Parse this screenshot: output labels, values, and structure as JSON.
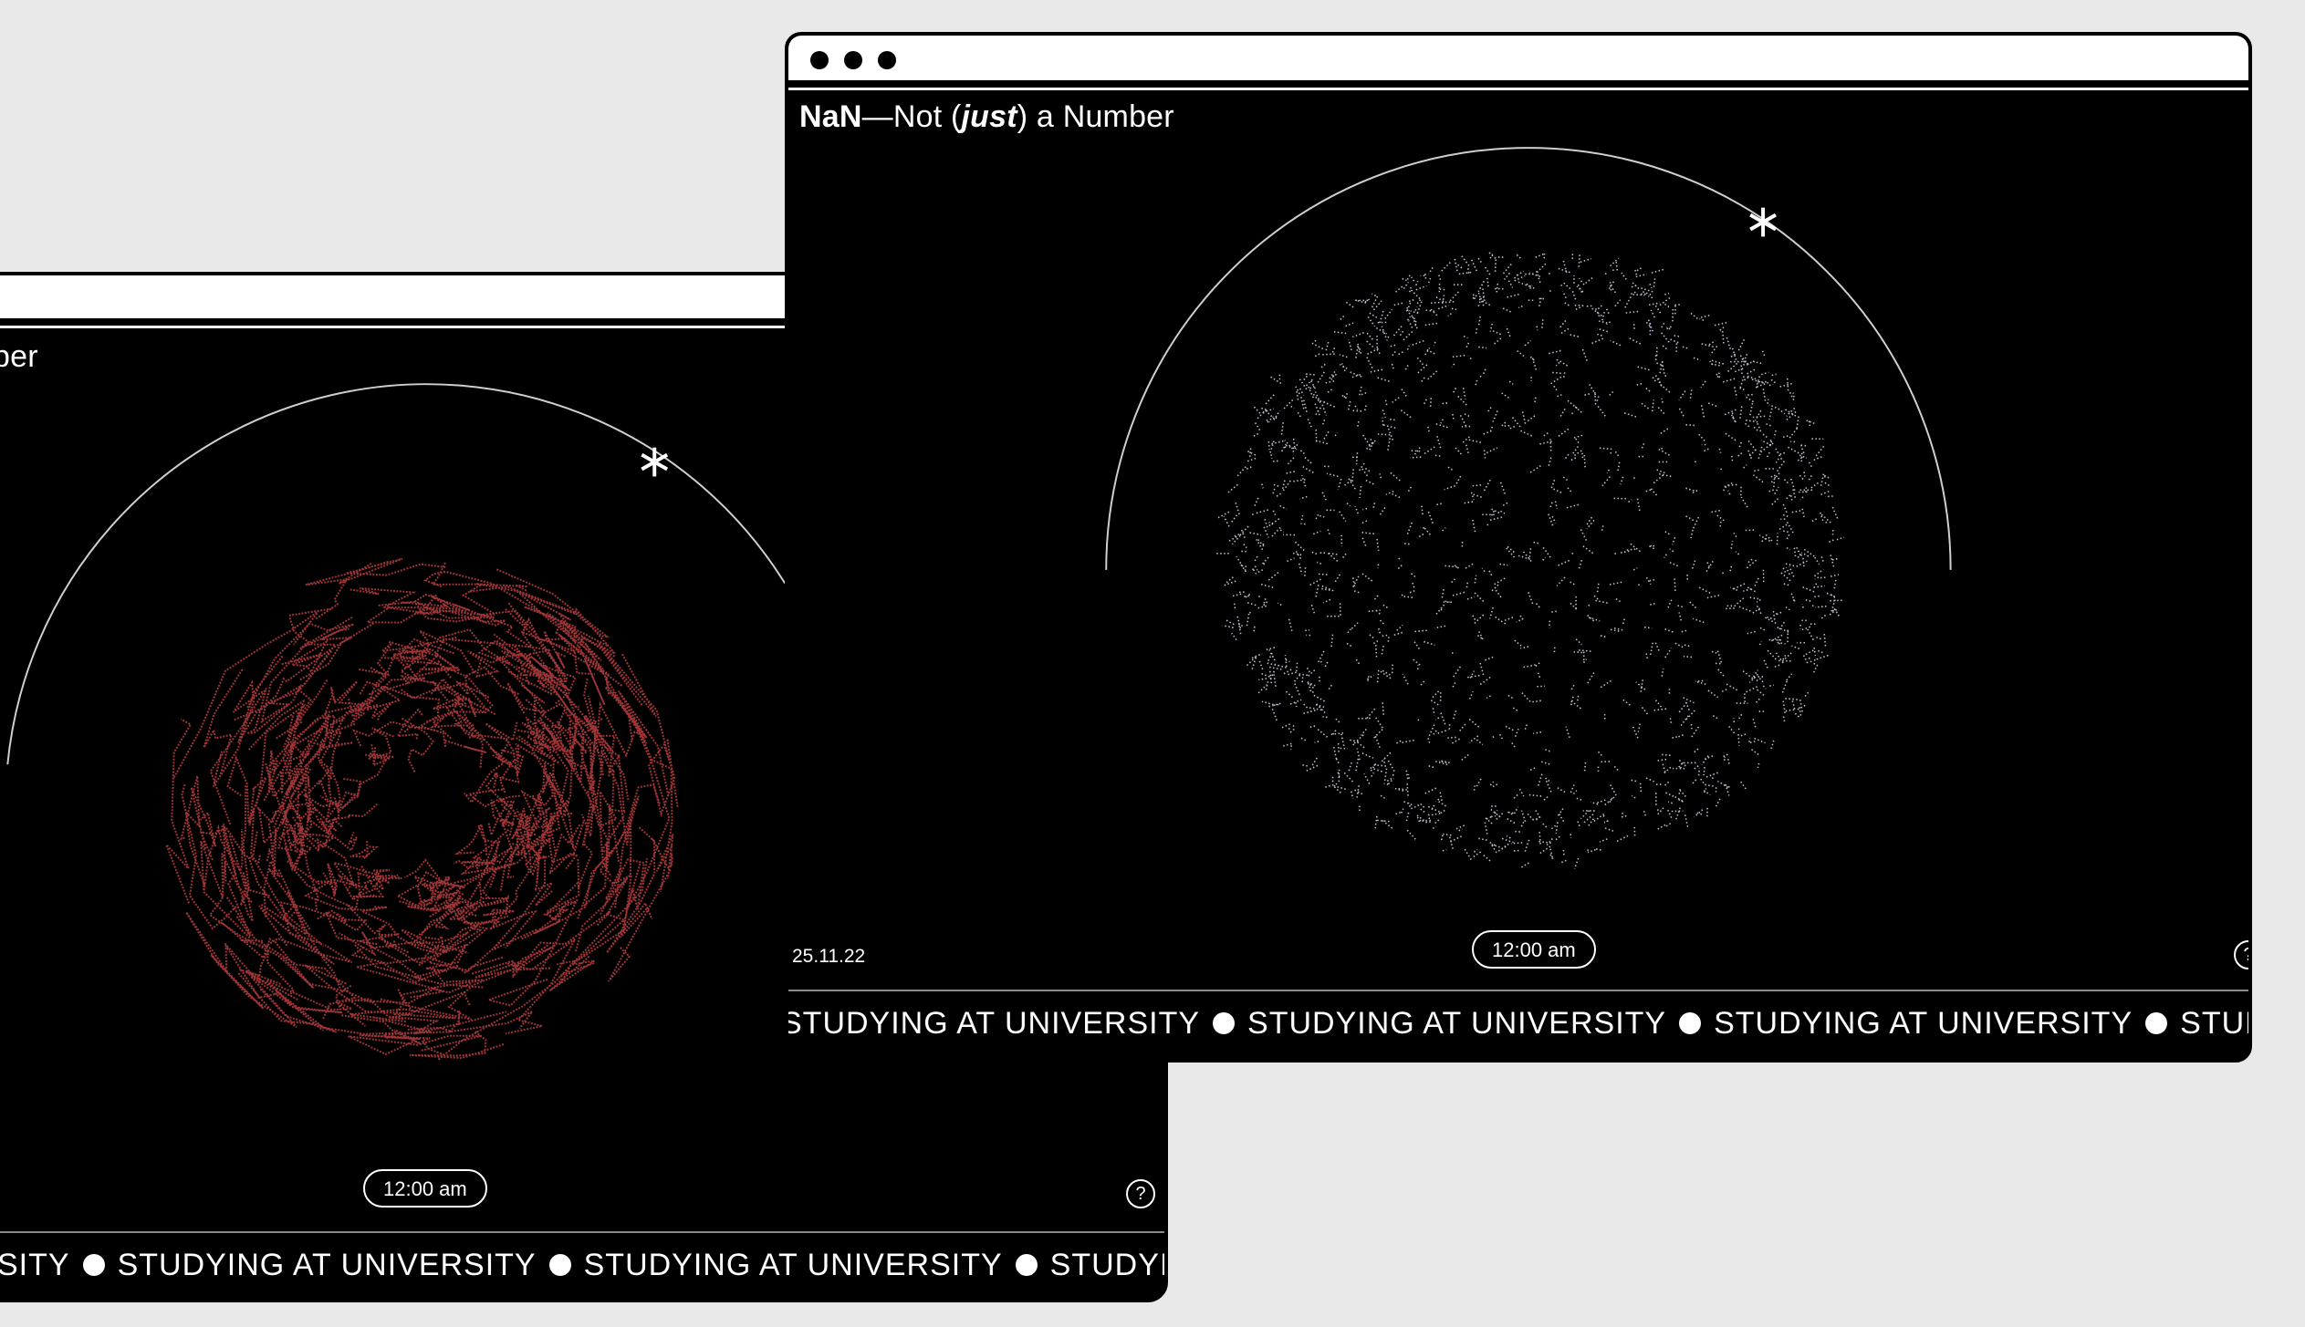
{
  "app": {
    "title_bold": "NaN",
    "title_dash": "—Not (",
    "title_italic": "just",
    "title_end": ") a Number",
    "back_title_fragment": "ber"
  },
  "back_window": {
    "time": "12:00 am",
    "help": "?",
    "ticker_lead": "SITY",
    "ticker_items": [
      "STUDYING AT UNIVERSITY",
      "STUDYING AT UNIVERSITY",
      "STUDYING AT"
    ],
    "particle_color": "#d6474a"
  },
  "front_window": {
    "date": "25.11.22",
    "time": "12:00 am",
    "help": "?",
    "ticker_items": [
      "STUDYING AT UNIVERSITY",
      "STUDYING AT UNIVERSITY",
      "STUDYING AT UNIVERSITY",
      "STUDYING A"
    ],
    "particle_color": "#dfe0f0"
  },
  "icons": {
    "marker": "asterisk-icon",
    "separator": "bullet-icon",
    "help": "question-icon"
  }
}
